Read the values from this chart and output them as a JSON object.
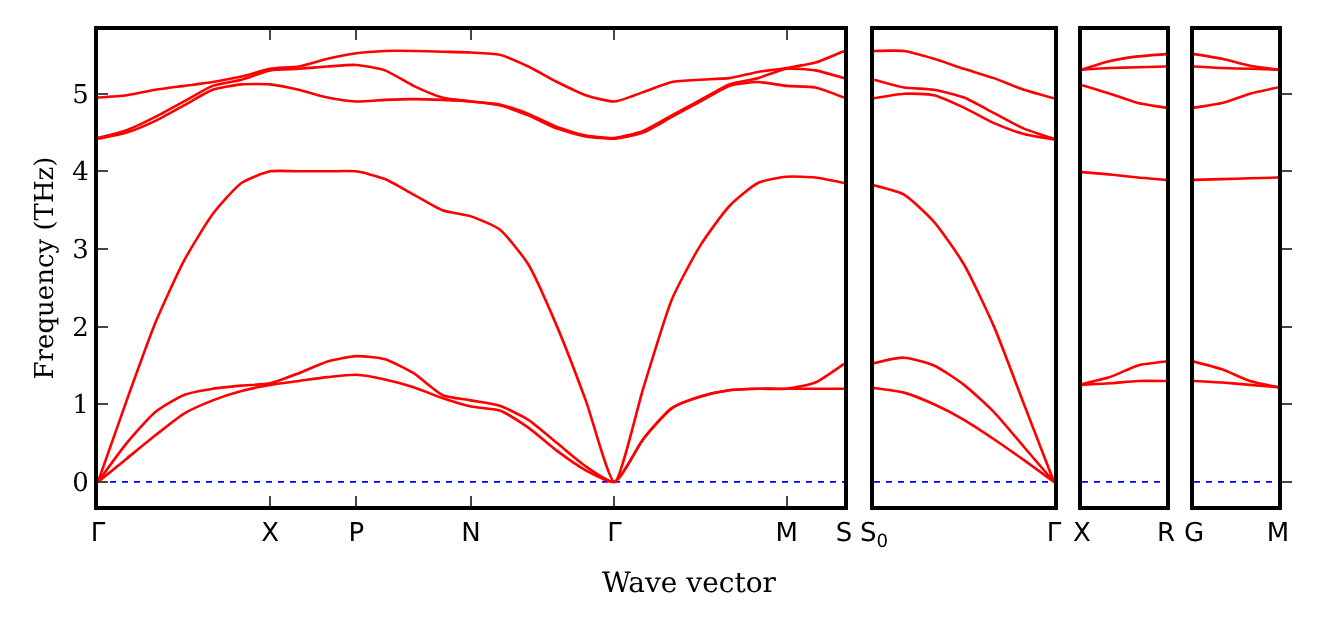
{
  "chart_data": [
    {
      "type": "line",
      "xlabel": "Wave vector",
      "ylabel": "Frequency (THz)",
      "marker": "none",
      "line_style": "solid",
      "grid": false,
      "categories": [
        "Γ",
        null,
        null,
        null,
        null,
        null,
        "X",
        null,
        null,
        "P",
        null,
        null,
        null,
        "N",
        null,
        null,
        null,
        null,
        "Γ",
        null,
        null,
        null,
        null,
        null,
        "M",
        null,
        "S"
      ],
      "ylim": [
        -0.31,
        5.82
      ],
      "yticks": [
        0,
        1,
        2,
        3,
        4,
        5
      ],
      "ref_lines": [
        {
          "axis": "y",
          "value": 0,
          "color": "#0000ff",
          "line_style": "dotted"
        }
      ],
      "series": [
        {
          "color": "#ff0000",
          "values": [
            0,
            0.3,
            0.6,
            0.88,
            1.05,
            1.17,
            1.25,
            1.3,
            1.35,
            1.38,
            1.32,
            1.22,
            1.08,
            0.97,
            0.92,
            0.7,
            0.4,
            0.15,
            0,
            0.55,
            0.95,
            1.1,
            1.18,
            1.2,
            1.2,
            1.2,
            1.2
          ]
        },
        {
          "color": "#ff0000",
          "values": [
            0,
            0.5,
            0.9,
            1.12,
            1.2,
            1.24,
            1.27,
            1.4,
            1.55,
            1.62,
            1.58,
            1.4,
            1.12,
            1.05,
            0.98,
            0.8,
            0.5,
            0.2,
            0,
            0.55,
            0.95,
            1.1,
            1.18,
            1.2,
            1.2,
            1.28,
            1.52
          ]
        },
        {
          "color": "#ff0000",
          "values": [
            0,
            1.05,
            2.05,
            2.85,
            3.45,
            3.85,
            4.0,
            4.0,
            4.0,
            4.0,
            3.9,
            3.7,
            3.5,
            3.42,
            3.25,
            2.8,
            2.0,
            1.05,
            0,
            1.2,
            2.35,
            3.05,
            3.55,
            3.85,
            3.93,
            3.92,
            3.85
          ]
        },
        {
          "color": "#ff0000",
          "values": [
            4.42,
            4.5,
            4.65,
            4.85,
            5.05,
            5.12,
            5.12,
            5.05,
            4.95,
            4.9,
            4.92,
            4.93,
            4.92,
            4.9,
            4.85,
            4.72,
            4.55,
            4.45,
            4.42,
            4.5,
            4.7,
            4.9,
            5.1,
            5.15,
            5.1,
            5.08,
            4.95
          ]
        },
        {
          "color": "#ff0000",
          "values": [
            4.43,
            4.53,
            4.7,
            4.9,
            5.1,
            5.18,
            5.3,
            5.32,
            5.35,
            5.37,
            5.3,
            5.1,
            4.95,
            4.9,
            4.86,
            4.74,
            4.57,
            4.46,
            4.43,
            4.52,
            4.72,
            4.92,
            5.12,
            5.2,
            5.32,
            5.3,
            5.2
          ]
        },
        {
          "color": "#ff0000",
          "values": [
            4.95,
            4.98,
            5.05,
            5.1,
            5.15,
            5.22,
            5.32,
            5.35,
            5.45,
            5.52,
            5.55,
            5.55,
            5.54,
            5.53,
            5.5,
            5.35,
            5.15,
            4.98,
            4.9,
            5.02,
            5.15,
            5.18,
            5.2,
            5.28,
            5.33,
            5.4,
            5.55
          ]
        }
      ]
    },
    {
      "type": "line",
      "marker": "none",
      "line_style": "solid",
      "grid": false,
      "tick_labels": "x",
      "categories": [
        "S$_{0}$",
        null,
        null,
        null,
        null,
        null,
        "Γ"
      ],
      "ylim": [
        -0.31,
        5.82
      ],
      "yticks": [
        0,
        1,
        2,
        3,
        4,
        5
      ],
      "ref_lines": [
        {
          "axis": "y",
          "value": 0,
          "color": "#0000ff",
          "line_style": "dotted"
        }
      ],
      "series": [
        {
          "color": "#ff0000",
          "values": [
            1.21,
            1.15,
            1.0,
            0.8,
            0.55,
            0.28,
            0
          ]
        },
        {
          "color": "#ff0000",
          "values": [
            1.53,
            1.6,
            1.5,
            1.25,
            0.9,
            0.45,
            0
          ]
        },
        {
          "color": "#ff0000",
          "values": [
            3.82,
            3.7,
            3.35,
            2.8,
            2.0,
            1.0,
            0
          ]
        },
        {
          "color": "#ff0000",
          "values": [
            4.94,
            5.0,
            4.98,
            4.82,
            4.62,
            4.48,
            4.41
          ]
        },
        {
          "color": "#ff0000",
          "values": [
            5.18,
            5.08,
            5.05,
            4.95,
            4.75,
            4.55,
            4.42
          ]
        },
        {
          "color": "#ff0000",
          "values": [
            5.55,
            5.55,
            5.45,
            5.32,
            5.2,
            5.05,
            4.94
          ]
        }
      ]
    },
    {
      "type": "line",
      "marker": "none",
      "line_style": "solid",
      "grid": false,
      "tick_labels": "x",
      "categories": [
        "X",
        null,
        null,
        "R"
      ],
      "ylim": [
        -0.31,
        5.82
      ],
      "yticks": [
        0,
        1,
        2,
        3,
        4,
        5
      ],
      "ref_lines": [
        {
          "axis": "y",
          "value": 0,
          "color": "#0000ff",
          "line_style": "dotted"
        }
      ],
      "series": [
        {
          "color": "#ff0000",
          "values": [
            1.25,
            1.27,
            1.3,
            1.3
          ]
        },
        {
          "color": "#ff0000",
          "values": [
            1.26,
            1.35,
            1.5,
            1.55
          ]
        },
        {
          "color": "#ff0000",
          "values": [
            3.99,
            3.96,
            3.92,
            3.89
          ]
        },
        {
          "color": "#ff0000",
          "values": [
            5.11,
            5.0,
            4.88,
            4.82
          ]
        },
        {
          "color": "#ff0000",
          "values": [
            5.31,
            5.33,
            5.34,
            5.35
          ]
        },
        {
          "color": "#ff0000",
          "values": [
            5.31,
            5.42,
            5.48,
            5.51
          ]
        }
      ]
    },
    {
      "type": "line",
      "marker": "none",
      "line_style": "solid",
      "grid": false,
      "tick_labels": "x",
      "categories": [
        "G",
        null,
        null,
        "M"
      ],
      "ylim": [
        -0.31,
        5.82
      ],
      "yticks": [
        0,
        1,
        2,
        3,
        4,
        5
      ],
      "ref_lines": [
        {
          "axis": "y",
          "value": 0,
          "color": "#0000ff",
          "line_style": "dotted"
        }
      ],
      "series": [
        {
          "color": "#ff0000",
          "values": [
            1.3,
            1.28,
            1.25,
            1.22
          ]
        },
        {
          "color": "#ff0000",
          "values": [
            1.55,
            1.45,
            1.3,
            1.22
          ]
        },
        {
          "color": "#ff0000",
          "values": [
            3.89,
            3.9,
            3.91,
            3.92
          ]
        },
        {
          "color": "#ff0000",
          "values": [
            4.82,
            4.88,
            5.0,
            5.08
          ]
        },
        {
          "color": "#ff0000",
          "values": [
            5.35,
            5.33,
            5.32,
            5.31
          ]
        },
        {
          "color": "#ff0000",
          "values": [
            5.51,
            5.45,
            5.36,
            5.31
          ]
        }
      ]
    }
  ]
}
